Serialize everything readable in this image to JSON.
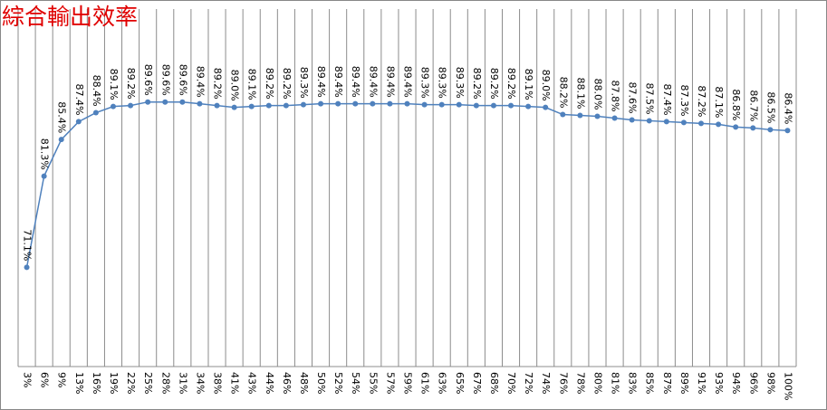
{
  "chart_data": {
    "type": "line",
    "title": "綜合輸出效率",
    "categories": [
      "3%",
      "6%",
      "9%",
      "13%",
      "16%",
      "19%",
      "22%",
      "25%",
      "28%",
      "31%",
      "34%",
      "38%",
      "41%",
      "43%",
      "44%",
      "46%",
      "48%",
      "50%",
      "52%",
      "54%",
      "55%",
      "57%",
      "59%",
      "61%",
      "63%",
      "65%",
      "67%",
      "68%",
      "70%",
      "72%",
      "74%",
      "76%",
      "78%",
      "80%",
      "81%",
      "83%",
      "85%",
      "87%",
      "89%",
      "91%",
      "93%",
      "94%",
      "96%",
      "98%",
      "100%"
    ],
    "values": [
      71.1,
      81.3,
      85.4,
      87.4,
      88.4,
      89.1,
      89.2,
      89.6,
      89.6,
      89.6,
      89.4,
      89.2,
      89.0,
      89.1,
      89.2,
      89.2,
      89.3,
      89.4,
      89.4,
      89.4,
      89.4,
      89.4,
      89.4,
      89.3,
      89.3,
      89.3,
      89.2,
      89.2,
      89.2,
      89.1,
      89.0,
      88.2,
      88.1,
      88.0,
      87.8,
      87.6,
      87.5,
      87.4,
      87.3,
      87.2,
      87.1,
      86.8,
      86.7,
      86.5,
      86.4
    ],
    "value_labels": [
      "71.1%",
      "81.3%",
      "85.4%",
      "87.4%",
      "88.4%",
      "89.1%",
      "89.2%",
      "89.6%",
      "89.6%",
      "89.6%",
      "89.4%",
      "89.2%",
      "89.0%",
      "89.1%",
      "89.2%",
      "89.2%",
      "89.3%",
      "89.4%",
      "89.4%",
      "89.4%",
      "89.4%",
      "89.4%",
      "89.4%",
      "89.3%",
      "89.3%",
      "89.3%",
      "89.2%",
      "89.2%",
      "89.2%",
      "89.1%",
      "89.0%",
      "88.2%",
      "88.1%",
      "88.0%",
      "87.8%",
      "87.6%",
      "87.5%",
      "87.4%",
      "87.3%",
      "87.2%",
      "87.1%",
      "86.8%",
      "86.7%",
      "86.5%",
      "86.4%"
    ],
    "color": "#4f81bd",
    "ylim": [
      60,
      100
    ],
    "grid": true
  }
}
